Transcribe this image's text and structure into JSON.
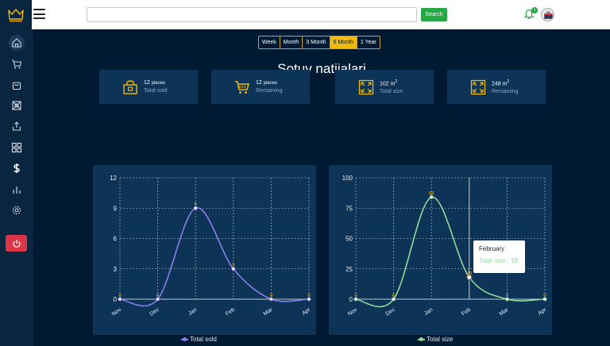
{
  "search": {
    "placeholder": "",
    "value": "",
    "button_label": "Search"
  },
  "notifications": {
    "count": "1"
  },
  "sidebar": {
    "items": [
      {
        "name": "home",
        "icon": "home-icon"
      },
      {
        "name": "cart",
        "icon": "cart-icon"
      },
      {
        "name": "bag",
        "icon": "bag-icon"
      },
      {
        "name": "grid",
        "icon": "apartment-icon"
      },
      {
        "name": "upload",
        "icon": "upload-icon"
      },
      {
        "name": "blocks",
        "icon": "blocks-icon"
      },
      {
        "name": "dollar",
        "icon": "dollar-icon"
      },
      {
        "name": "stats",
        "icon": "bar-chart-icon"
      },
      {
        "name": "settings",
        "icon": "gear-icon"
      }
    ],
    "logout_icon": "power-icon"
  },
  "periods": [
    "Week",
    "Month",
    "3 Month",
    "6 Month",
    "1 Year"
  ],
  "active_period": "6 Month",
  "page_title": "Sotuv natijalari",
  "stats": [
    {
      "value": "12",
      "unit": "pieces",
      "label": "Total sold",
      "icon": "bag-icon"
    },
    {
      "value": "12",
      "unit": "pieces",
      "label": "Remaining",
      "icon": "cart-icon"
    },
    {
      "value": "102",
      "unit": "m",
      "sup": "2",
      "label": "Total size",
      "icon": "expand-icon"
    },
    {
      "value": "248",
      "unit": "m",
      "sup": "2",
      "label": "Remaining",
      "icon": "expand-icon"
    }
  ],
  "colors": {
    "accent": "#f0b90b",
    "sold_line": "#8a7fe8",
    "size_line": "#8fd99a",
    "power": "#dc3545",
    "search": "#28a745"
  },
  "chart_data": [
    {
      "type": "line",
      "categories": [
        "Nov",
        "Dec",
        "Jan",
        "Feb",
        "Mar",
        "Apr"
      ],
      "series": [
        {
          "name": "Total sold",
          "values": [
            0,
            0,
            9,
            3,
            0,
            0
          ]
        }
      ],
      "ylim": [
        0,
        12
      ],
      "yticks": [
        0,
        3,
        6,
        9,
        12
      ],
      "grid": true,
      "legend": "bottom"
    },
    {
      "type": "line",
      "categories": [
        "Nov",
        "Dec",
        "Jan",
        "Feb",
        "Mar",
        "Apr"
      ],
      "series": [
        {
          "name": "Total size",
          "values": [
            0,
            0,
            84,
            18,
            0,
            0
          ]
        }
      ],
      "ylim": [
        0,
        100
      ],
      "yticks": [
        0,
        25,
        50,
        75,
        100
      ],
      "grid": true,
      "legend": "bottom"
    }
  ],
  "tooltip": {
    "title": "February",
    "label": "Total size",
    "value": "18"
  }
}
